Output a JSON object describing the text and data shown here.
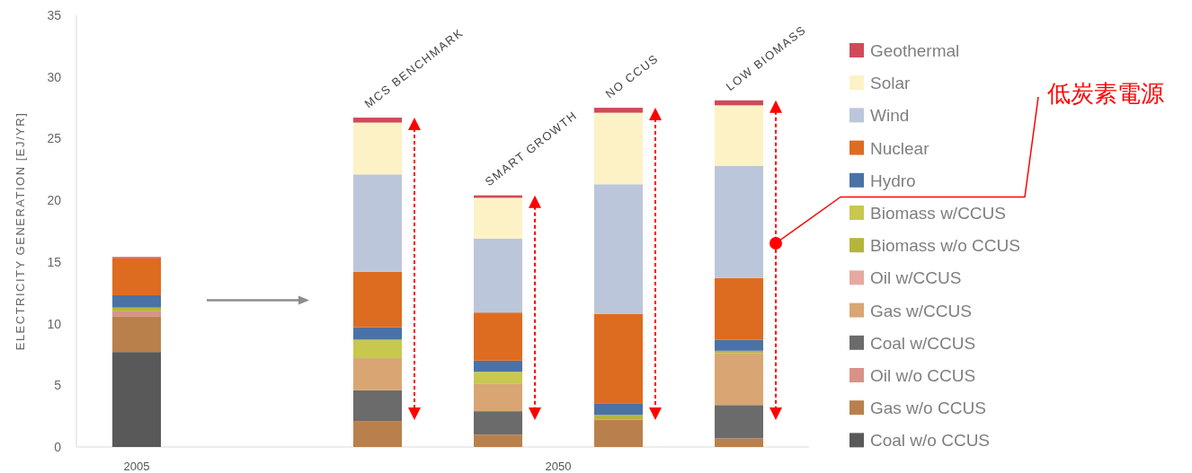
{
  "chart_data": {
    "type": "bar",
    "stacked": true,
    "ylabel": "ELECTRICITY GENERATION  [EJ/YR]",
    "categories": [
      "2005",
      null,
      "MCS BENCHMARK",
      "SMART GROWTH",
      "NO CCUS",
      "LOW BIOMASS"
    ],
    "ylim": [
      0,
      35
    ],
    "yticks": [
      0,
      5,
      10,
      15,
      20,
      25,
      30,
      35
    ],
    "grid": false,
    "legend": "right",
    "annotations": [
      "2050",
      "低炭素電源"
    ],
    "series": [
      {
        "name": "Coal w/o CCUS",
        "color": "#595959",
        "values": [
          7.7,
          null,
          0,
          0,
          0,
          0
        ]
      },
      {
        "name": "Gas w/o CCUS",
        "color": "#b9804c",
        "values": [
          2.9,
          null,
          2.1,
          1.0,
          2.2,
          0.7
        ]
      },
      {
        "name": "Oil w/o CCUS",
        "color": "#d9928a",
        "values": [
          0.4,
          null,
          0,
          0,
          0,
          0
        ]
      },
      {
        "name": "Coal w/CCUS",
        "color": "#6b6b6b",
        "values": [
          0,
          null,
          2.5,
          1.9,
          0,
          2.7
        ]
      },
      {
        "name": "Gas w/CCUS",
        "color": "#d9a673",
        "values": [
          0,
          null,
          2.6,
          2.2,
          0,
          4.2
        ]
      },
      {
        "name": "Oil w/CCUS",
        "color": "#e6a9a0",
        "values": [
          0,
          null,
          0,
          0,
          0,
          0
        ]
      },
      {
        "name": "Biomass w/o CCUS",
        "color": "#b5b53c",
        "values": [
          0.3,
          null,
          0,
          0,
          0.4,
          0.2
        ]
      },
      {
        "name": "Biomass w/CCUS",
        "color": "#c8c850",
        "values": [
          0,
          null,
          1.5,
          1.0,
          0,
          0
        ]
      },
      {
        "name": "Hydro",
        "color": "#4a72a6",
        "values": [
          1.0,
          null,
          1.0,
          0.9,
          0.9,
          0.9
        ]
      },
      {
        "name": "Nuclear",
        "color": "#dd6c20",
        "values": [
          3.0,
          null,
          4.5,
          3.9,
          7.3,
          5.0
        ]
      },
      {
        "name": "Wind",
        "color": "#bcc6da",
        "values": [
          0,
          null,
          7.9,
          6.0,
          10.5,
          9.1
        ]
      },
      {
        "name": "Solar",
        "color": "#fdf2c6",
        "values": [
          0,
          null,
          4.2,
          3.3,
          5.8,
          4.9
        ]
      },
      {
        "name": "Geothermal",
        "color": "#d04a5a",
        "values": [
          0.1,
          null,
          0.4,
          0.2,
          0.4,
          0.4
        ]
      }
    ]
  }
}
